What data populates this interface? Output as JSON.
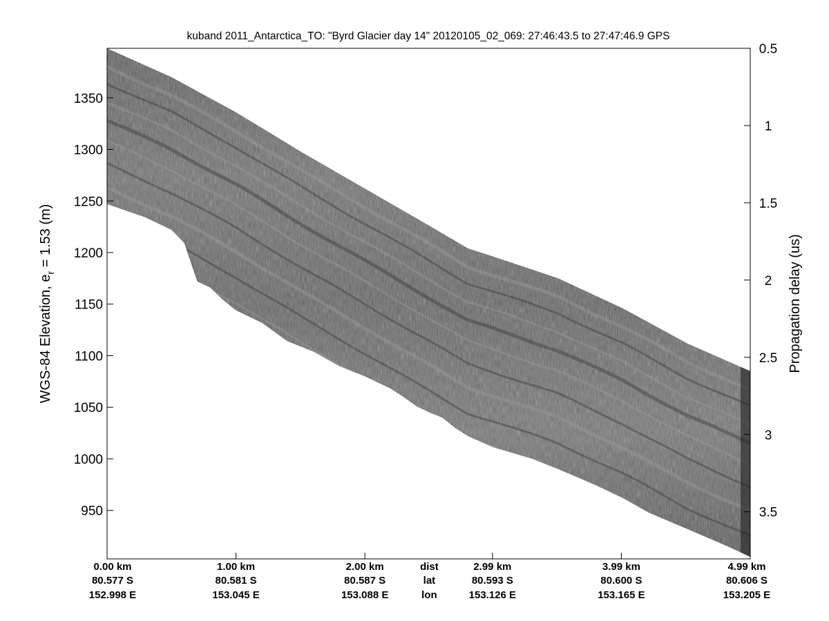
{
  "chart_data": {
    "type": "heatmap",
    "title": "kuband 2011_Antarctica_TO: \"Byrd Glacier day 14\"  20120105_02_069: 27:46:43.5 to 27:47:46.9 GPS",
    "ylabel_left": "WGS-84 Elevation, e_r = 1.53 (m)",
    "ylabel_left_main": "WGS-84 Elevation, e",
    "ylabel_left_sub": "r",
    "ylabel_left_tail": " = 1.53 (m)",
    "ylabel_right": "Propagation delay (us)",
    "ylim": [
      903,
      1398
    ],
    "right_ylim": [
      0.5,
      3.805
    ],
    "xlim_km": [
      0,
      4.99
    ],
    "yticks": [
      950,
      1000,
      1050,
      1100,
      1150,
      1200,
      1250,
      1300,
      1350
    ],
    "right_yticks": [
      0.5,
      1,
      1.5,
      2,
      2.5,
      3,
      3.5
    ],
    "right_ytick_labels": [
      "0.5",
      "1",
      "1.5",
      "2",
      "2.5",
      "3",
      "3.5"
    ],
    "grid": false,
    "colormap": "gray",
    "x_axis_rows": [
      {
        "pos_km": 0.0,
        "dist": "0.00 km",
        "lat": "80.577 S",
        "lon": "152.998 E"
      },
      {
        "pos_km": 1.0,
        "dist": "1.00 km",
        "lat": "80.581 S",
        "lon": "153.045 E"
      },
      {
        "pos_km": 2.0,
        "dist": "2.00 km",
        "lat": "80.587 S",
        "lon": "153.088 E"
      },
      {
        "pos_km": 2.5,
        "dist": "dist",
        "lat": "lat",
        "lon": "lon"
      },
      {
        "pos_km": 2.99,
        "dist": "2.99 km",
        "lat": "80.593 S",
        "lon": "153.126 E"
      },
      {
        "pos_km": 3.99,
        "dist": "3.99 km",
        "lat": "80.600 S",
        "lon": "153.165 E"
      },
      {
        "pos_km": 4.99,
        "dist": "4.99 km",
        "lat": "80.606 S",
        "lon": "153.205 E"
      }
    ],
    "echo_top_elevation": {
      "x_km": [
        0.0,
        0.5,
        1.0,
        1.5,
        2.0,
        2.5,
        2.8,
        3.0,
        3.5,
        4.0,
        4.5,
        4.99
      ],
      "y_m": [
        1398,
        1370,
        1336,
        1298,
        1262,
        1226,
        1204,
        1196,
        1175,
        1146,
        1112,
        1085
      ]
    },
    "echo_bottom_elevation": {
      "x_km": [
        0.0,
        0.3,
        0.5,
        0.6,
        0.65,
        0.7,
        0.8,
        0.9,
        1.0,
        1.2,
        1.4,
        1.6,
        1.8,
        2.0,
        2.2,
        2.3,
        2.4,
        2.5,
        2.6,
        2.7,
        2.8,
        3.0,
        3.3,
        3.5,
        3.8,
        4.0,
        4.2,
        4.5,
        4.8,
        4.99
      ],
      "y_m": [
        1247,
        1234,
        1222,
        1209,
        1190,
        1172,
        1166,
        1154,
        1144,
        1132,
        1114,
        1104,
        1090,
        1080,
        1068,
        1060,
        1051,
        1045,
        1040,
        1030,
        1022,
        1011,
        1000,
        990,
        974,
        962,
        948,
        932,
        916,
        905
      ]
    }
  }
}
